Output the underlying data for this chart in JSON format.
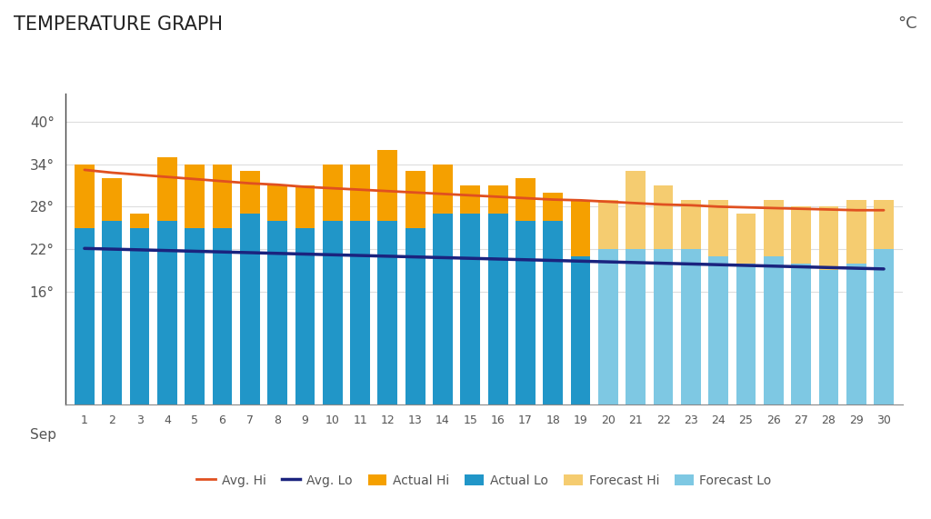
{
  "title": "TEMPERATURE GRAPH",
  "unit": "°C",
  "days": [
    1,
    2,
    3,
    4,
    5,
    6,
    7,
    8,
    9,
    10,
    11,
    12,
    13,
    14,
    15,
    16,
    17,
    18,
    19,
    20,
    21,
    22,
    23,
    24,
    25,
    26,
    27,
    28,
    29,
    30
  ],
  "actual_hi": [
    34,
    32,
    27,
    35,
    34,
    34,
    33,
    31,
    31,
    34,
    34,
    36,
    33,
    34,
    31,
    31,
    32,
    30,
    29,
    null,
    null,
    null,
    null,
    null,
    null,
    null,
    null,
    null,
    null,
    null
  ],
  "actual_lo": [
    25,
    26,
    25,
    26,
    25,
    25,
    27,
    26,
    25,
    26,
    26,
    26,
    25,
    27,
    27,
    27,
    26,
    26,
    21,
    null,
    null,
    null,
    null,
    null,
    null,
    null,
    null,
    null,
    null,
    null
  ],
  "forecast_hi": [
    null,
    null,
    null,
    null,
    null,
    null,
    null,
    null,
    null,
    null,
    null,
    null,
    null,
    null,
    null,
    null,
    null,
    null,
    null,
    29,
    33,
    31,
    29,
    29,
    27,
    29,
    28,
    28,
    29,
    29
  ],
  "forecast_lo": [
    null,
    null,
    null,
    null,
    null,
    null,
    null,
    null,
    null,
    null,
    null,
    null,
    null,
    null,
    null,
    null,
    null,
    null,
    null,
    22,
    22,
    22,
    22,
    21,
    20,
    21,
    20,
    19,
    20,
    22
  ],
  "avg_hi": [
    33.2,
    32.8,
    32.5,
    32.2,
    31.9,
    31.6,
    31.3,
    31.1,
    30.8,
    30.6,
    30.4,
    30.2,
    30.0,
    29.8,
    29.6,
    29.4,
    29.2,
    29.0,
    28.9,
    28.7,
    28.5,
    28.3,
    28.2,
    28.0,
    27.9,
    27.8,
    27.7,
    27.6,
    27.5,
    27.5
  ],
  "avg_lo": [
    22.1,
    22.0,
    21.9,
    21.8,
    21.7,
    21.6,
    21.5,
    21.4,
    21.3,
    21.2,
    21.1,
    21.0,
    20.9,
    20.8,
    20.7,
    20.6,
    20.5,
    20.4,
    20.3,
    20.2,
    20.1,
    20.0,
    19.9,
    19.8,
    19.7,
    19.6,
    19.5,
    19.4,
    19.3,
    19.2
  ],
  "color_actual_hi": "#F5A000",
  "color_actual_lo": "#2196C8",
  "color_forecast_hi": "#F5CC70",
  "color_forecast_lo": "#7EC8E3",
  "color_avg_hi": "#E05020",
  "color_avg_lo": "#1A237E",
  "background_color": "#FFFFFF",
  "yticks": [
    16,
    22,
    28,
    34,
    40
  ],
  "ylim": [
    0,
    44
  ],
  "xlabel": "Sep",
  "grid_color": "#DDDDDD"
}
